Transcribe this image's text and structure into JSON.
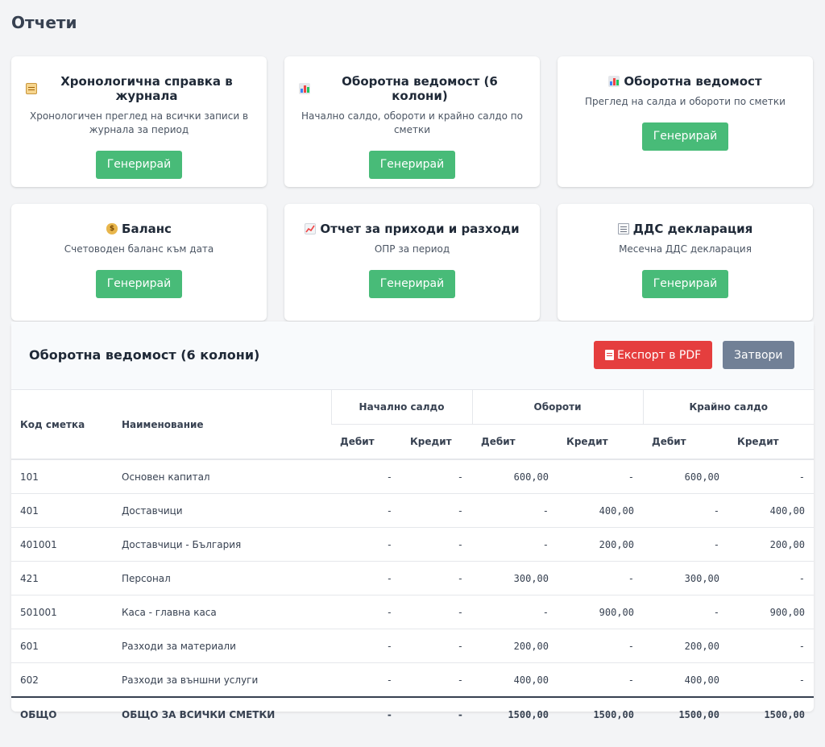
{
  "page": {
    "title": "Отчети"
  },
  "cards": [
    {
      "icon": "scroll-icon",
      "title": "Хронологична справка в журнала",
      "description": "Хронологичен преглед на всички записи в журнала за период",
      "button": "Генерирай"
    },
    {
      "icon": "bar-chart-icon",
      "title": "Оборотна ведомост (6 колони)",
      "description": "Начално салдо, обороти и крайно салдо по сметки",
      "button": "Генерирай"
    },
    {
      "icon": "bar-chart-icon",
      "title": "Оборотна ведомост",
      "description": "Преглед на салда и обороти по сметки",
      "button": "Генерирай"
    },
    {
      "icon": "money-bag-icon",
      "title": "Баланс",
      "description": "Счетоводен баланс към дата",
      "button": "Генерирай"
    },
    {
      "icon": "trend-up-icon",
      "title": "Отчет за приходи и разходи",
      "description": "ОПР за период",
      "button": "Генерирай"
    },
    {
      "icon": "receipt-icon",
      "title": "ДДС декларация",
      "description": "Месечна ДДС декларация",
      "button": "Генерирай"
    }
  ],
  "report": {
    "title": "Оборотна ведомост (6 колони)",
    "export_label": "Експорт в PDF",
    "close_label": "Затвори",
    "columns": {
      "code": "Код сметка",
      "name": "Наименование",
      "opening": "Начално салдо",
      "turnover": "Обороти",
      "closing": "Крайно салдо",
      "debit": "Дебит",
      "credit": "Кредит"
    },
    "rows": [
      {
        "code": "101",
        "name": "Основен капитал",
        "od": "-",
        "oc": "-",
        "td": "600,00",
        "tc": "-",
        "cd": "600,00",
        "cc": "-"
      },
      {
        "code": "401",
        "name": "Доставчици",
        "od": "-",
        "oc": "-",
        "td": "-",
        "tc": "400,00",
        "cd": "-",
        "cc": "400,00"
      },
      {
        "code": "401001",
        "name": "Доставчици - България",
        "od": "-",
        "oc": "-",
        "td": "-",
        "tc": "200,00",
        "cd": "-",
        "cc": "200,00"
      },
      {
        "code": "421",
        "name": "Персонал",
        "od": "-",
        "oc": "-",
        "td": "300,00",
        "tc": "-",
        "cd": "300,00",
        "cc": "-"
      },
      {
        "code": "501001",
        "name": "Каса - главна каса",
        "od": "-",
        "oc": "-",
        "td": "-",
        "tc": "900,00",
        "cd": "-",
        "cc": "900,00"
      },
      {
        "code": "601",
        "name": "Разходи за материали",
        "od": "-",
        "oc": "-",
        "td": "200,00",
        "tc": "-",
        "cd": "200,00",
        "cc": "-"
      },
      {
        "code": "602",
        "name": "Разходи за външни услуги",
        "od": "-",
        "oc": "-",
        "td": "400,00",
        "tc": "-",
        "cd": "400,00",
        "cc": "-"
      }
    ],
    "total": {
      "code": "ОБЩО",
      "name": "ОБЩО ЗА ВСИЧКИ СМЕТКИ",
      "od": "-",
      "oc": "-",
      "td": "1500,00",
      "tc": "1500,00",
      "cd": "1500,00",
      "cc": "1500,00"
    }
  },
  "colors": {
    "success": "#48bb78",
    "danger": "#e53e3e",
    "secondary": "#718096"
  }
}
